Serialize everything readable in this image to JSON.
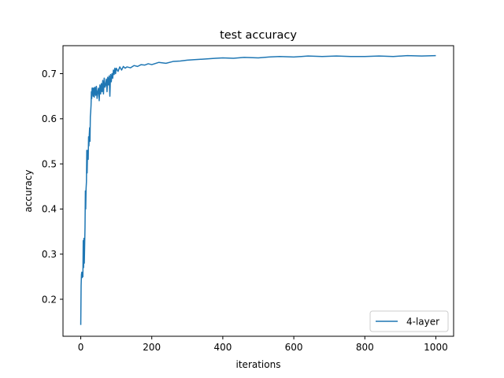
{
  "chart_data": {
    "type": "line",
    "title": "test accuracy",
    "xlabel": "iterations",
    "ylabel": "accuracy",
    "xlim": [
      -50,
      1050
    ],
    "ylim": [
      0.118,
      0.762
    ],
    "xticks": [
      0,
      200,
      400,
      600,
      800,
      1000
    ],
    "yticks": [
      0.2,
      0.3,
      0.4,
      0.5,
      0.6,
      0.7
    ],
    "xtick_labels": [
      "0",
      "200",
      "400",
      "600",
      "800",
      "1000"
    ],
    "ytick_labels": [
      "0.2",
      "0.3",
      "0.4",
      "0.5",
      "0.6",
      "0.7"
    ],
    "grid": false,
    "legend_position": "lower-right",
    "series": [
      {
        "name": "4-layer",
        "color": "#1f77b4",
        "x": [
          0,
          1,
          2,
          3,
          4,
          5,
          6,
          7,
          8,
          9,
          10,
          11,
          12,
          13,
          14,
          15,
          16,
          17,
          18,
          19,
          20,
          21,
          22,
          23,
          24,
          25,
          26,
          27,
          28,
          29,
          30,
          31,
          32,
          33,
          34,
          35,
          36,
          37,
          38,
          39,
          40,
          42,
          44,
          46,
          48,
          50,
          52,
          54,
          56,
          58,
          60,
          62,
          64,
          66,
          68,
          70,
          72,
          74,
          76,
          78,
          80,
          82,
          84,
          86,
          88,
          90,
          92,
          94,
          96,
          98,
          100,
          105,
          110,
          115,
          120,
          125,
          130,
          140,
          150,
          160,
          170,
          180,
          190,
          200,
          220,
          240,
          260,
          280,
          300,
          320,
          340,
          360,
          380,
          400,
          430,
          460,
          500,
          530,
          560,
          600,
          640,
          680,
          720,
          760,
          800,
          840,
          880,
          920,
          960,
          1000
        ],
        "y": [
          0.143,
          0.23,
          0.255,
          0.26,
          0.248,
          0.258,
          0.25,
          0.33,
          0.27,
          0.335,
          0.28,
          0.32,
          0.36,
          0.44,
          0.4,
          0.445,
          0.46,
          0.53,
          0.48,
          0.52,
          0.53,
          0.51,
          0.56,
          0.54,
          0.565,
          0.58,
          0.55,
          0.605,
          0.615,
          0.63,
          0.66,
          0.645,
          0.668,
          0.655,
          0.668,
          0.65,
          0.662,
          0.668,
          0.648,
          0.665,
          0.67,
          0.652,
          0.672,
          0.645,
          0.66,
          0.668,
          0.64,
          0.675,
          0.655,
          0.678,
          0.66,
          0.685,
          0.655,
          0.69,
          0.67,
          0.675,
          0.688,
          0.66,
          0.692,
          0.675,
          0.695,
          0.65,
          0.698,
          0.682,
          0.7,
          0.69,
          0.708,
          0.698,
          0.712,
          0.7,
          0.712,
          0.705,
          0.715,
          0.708,
          0.716,
          0.712,
          0.715,
          0.713,
          0.718,
          0.716,
          0.72,
          0.719,
          0.722,
          0.72,
          0.725,
          0.723,
          0.727,
          0.728,
          0.73,
          0.731,
          0.732,
          0.733,
          0.734,
          0.735,
          0.734,
          0.736,
          0.735,
          0.737,
          0.738,
          0.737,
          0.739,
          0.738,
          0.739,
          0.738,
          0.738,
          0.739,
          0.738,
          0.74,
          0.739,
          0.74
        ]
      }
    ]
  }
}
